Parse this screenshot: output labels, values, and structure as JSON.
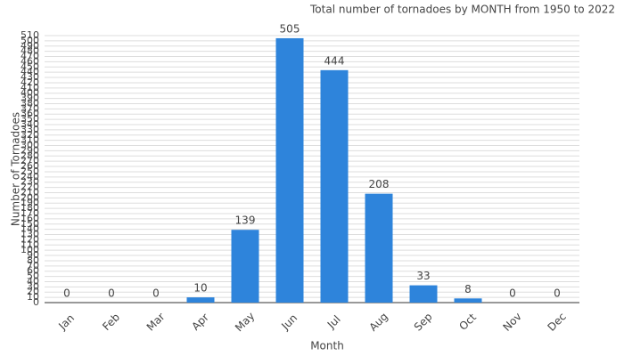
{
  "chart_data": {
    "type": "bar",
    "title": "Total number of tornadoes by MONTH from 1950 to 2022",
    "x_label": "Month",
    "y_label": "Number of Tornadoes",
    "categories": [
      "Jan",
      "Feb",
      "Mar",
      "Apr",
      "May",
      "Jun",
      "Jul",
      "Aug",
      "Sep",
      "Oct",
      "Nov",
      "Dec"
    ],
    "values": [
      0,
      0,
      0,
      10,
      139,
      505,
      444,
      208,
      33,
      8,
      0,
      0
    ],
    "color": "#2e84db",
    "ylim": [
      0,
      510
    ],
    "yticks": [
      0,
      10,
      20,
      30,
      40,
      50,
      60,
      70,
      80,
      90,
      100,
      110,
      120,
      130,
      140,
      150,
      160,
      170,
      180,
      190,
      200,
      210,
      220,
      230,
      240,
      250,
      260,
      270,
      280,
      290,
      300,
      310,
      320,
      330,
      340,
      350,
      360,
      370,
      380,
      390,
      400,
      410,
      420,
      430,
      440,
      450,
      460,
      470,
      480,
      490,
      500,
      510
    ],
    "grid": true
  }
}
